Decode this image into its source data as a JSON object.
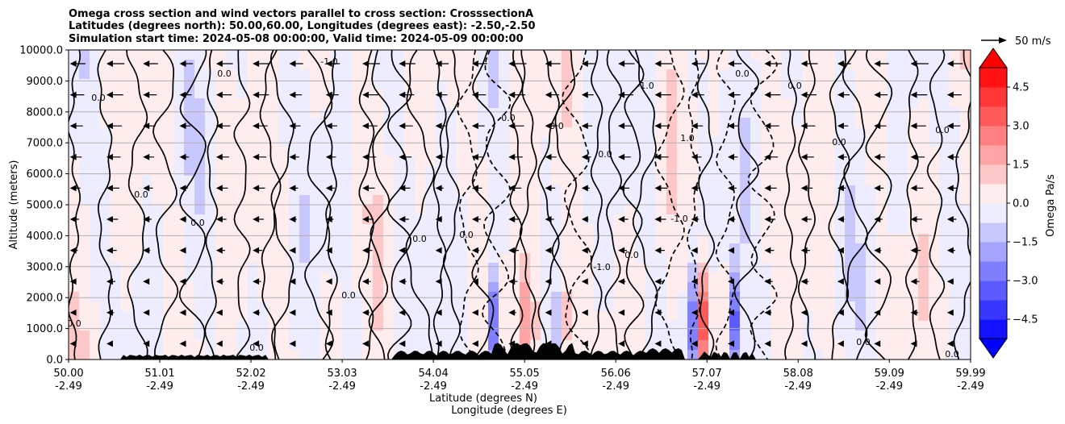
{
  "chart_data": {
    "type": "heatmap",
    "title_lines": [
      "Omega cross section and wind vectors parallel to cross section: CrosssectionA",
      "Latitudes (degrees north): 50.00,60.00, Longitudes (degrees east): -2.50,-2.50",
      "Simulation start time: 2024-05-08 00:00:00, Valid time: 2024-05-09 00:00:00"
    ],
    "ylabel": "Altitude (meters)",
    "xlabel_line1": "Latitude (degrees N)",
    "xlabel_line2": "Longitude (degrees E)",
    "ylim": [
      0,
      10000
    ],
    "xlim": [
      50.0,
      59.99
    ],
    "yticks": [
      "0.0",
      "1000.0",
      "2000.0",
      "3000.0",
      "4000.0",
      "5000.0",
      "6000.0",
      "7000.0",
      "8000.0",
      "9000.0",
      "10000.0"
    ],
    "xticks": [
      {
        "lat": "50.00",
        "lon": "-2.49"
      },
      {
        "lat": "51.01",
        "lon": "-2.49"
      },
      {
        "lat": "52.02",
        "lon": "-2.49"
      },
      {
        "lat": "53.03",
        "lon": "-2.49"
      },
      {
        "lat": "54.04",
        "lon": "-2.49"
      },
      {
        "lat": "55.05",
        "lon": "-2.49"
      },
      {
        "lat": "56.06",
        "lon": "-2.49"
      },
      {
        "lat": "57.07",
        "lon": "-2.49"
      },
      {
        "lat": "58.08",
        "lon": "-2.49"
      },
      {
        "lat": "59.09",
        "lon": "-2.49"
      },
      {
        "lat": "59.99",
        "lon": "-2.49"
      }
    ],
    "grid": "horizontal",
    "colorbar": {
      "label": "Omega Pa/s",
      "range": [
        -5.25,
        5.25
      ],
      "ticks": [
        "−4.5",
        "−3.0",
        "−1.5",
        "0.0",
        "1.5",
        "3.0",
        "4.5"
      ],
      "tick_values": [
        -4.5,
        -3.0,
        -1.5,
        0.0,
        1.5,
        3.0,
        4.5
      ],
      "colormap": "bwr",
      "extend": "both"
    },
    "quiver_key": "50 m/s",
    "contour_labels": [
      "0.0",
      "-1.0",
      "1.0"
    ],
    "colors": {
      "negative": "#0000ff",
      "positive": "#ff0000",
      "neutral": "#ffffff",
      "terrain": "#000000"
    }
  }
}
